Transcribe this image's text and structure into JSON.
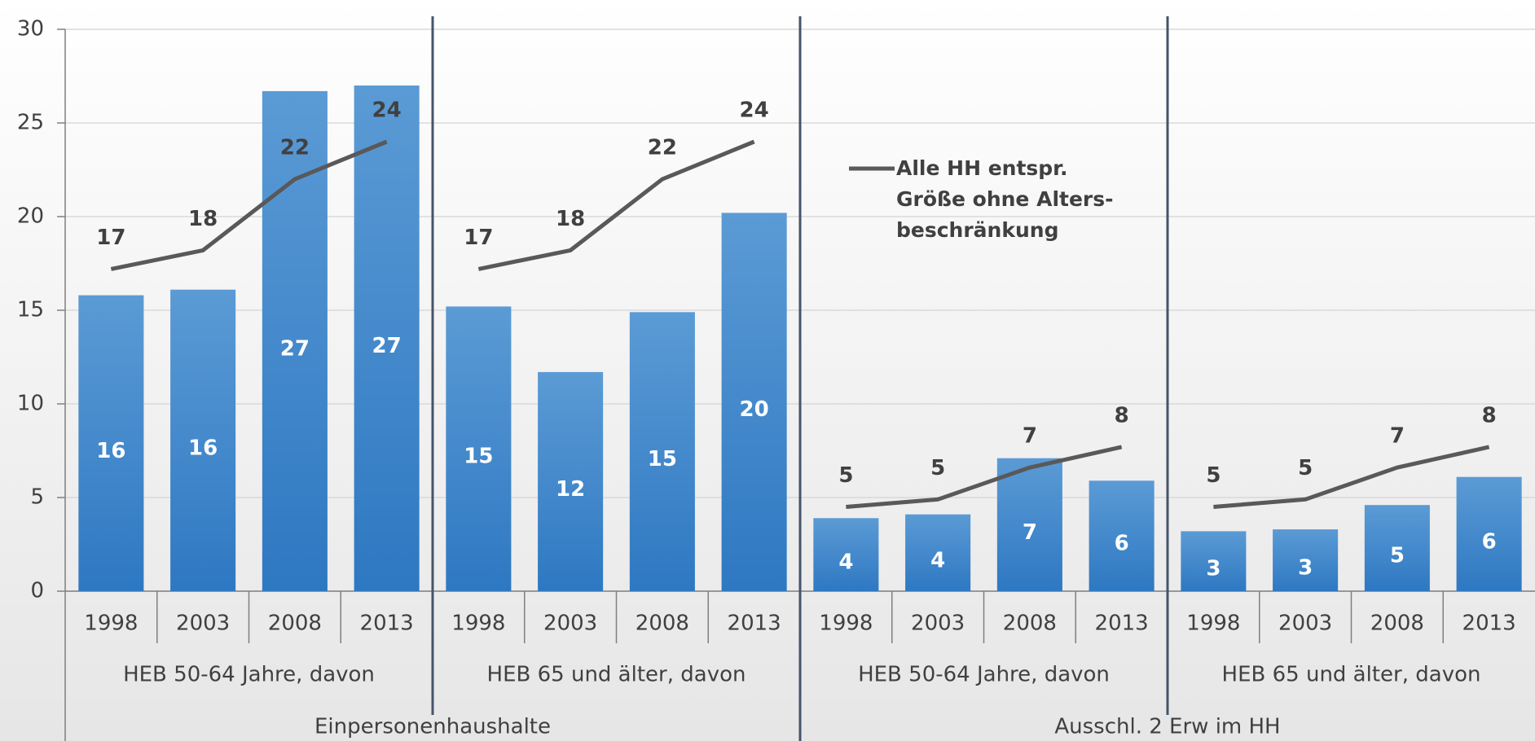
{
  "chart_data": {
    "type": "bar-line",
    "categories": [
      "1998",
      "2003",
      "2008",
      "2013",
      "1998",
      "2003",
      "2008",
      "2013",
      "1998",
      "2003",
      "2008",
      "2013",
      "1998",
      "2003",
      "2008",
      "2013"
    ],
    "groups": [
      "HEB 50-64 Jahre, davon",
      "HEB 65 und älter, davon",
      "HEB 50-64 Jahre, davon",
      "HEB 65 und älter, davon"
    ],
    "supergroups": [
      "Einpersonenhaushalte",
      "Ausschl. 2 Erw im HH"
    ],
    "series": [
      {
        "type": "bar",
        "color": "#5b9bd5",
        "values": [
          15.8,
          16.1,
          26.7,
          27.0,
          15.2,
          11.7,
          14.9,
          20.2,
          3.9,
          4.1,
          7.1,
          5.9,
          3.2,
          3.3,
          4.6,
          6.1
        ],
        "value_labels": [
          "16",
          "16",
          "27",
          "27",
          "15",
          "12",
          "15",
          "20",
          "4",
          "4",
          "7",
          "6",
          "3",
          "3",
          "5",
          "6"
        ]
      },
      {
        "type": "line",
        "name": "Alle HH entspr. Größe ohne Alters-beschränkung",
        "color": "#595959",
        "values": [
          17.2,
          18.2,
          22,
          24,
          17.2,
          18.2,
          22,
          24,
          4.5,
          4.9,
          6.6,
          7.7,
          4.5,
          4.9,
          6.6,
          7.7
        ],
        "value_labels": [
          "17",
          "18",
          "22",
          "24",
          "17",
          "18",
          "22",
          "24",
          "5",
          "5",
          "7",
          "8",
          "5",
          "5",
          "7",
          "8"
        ]
      }
    ],
    "ylim": [
      0,
      30
    ],
    "yticks": [
      0,
      5,
      10,
      15,
      20,
      25,
      30
    ],
    "grid": true
  }
}
